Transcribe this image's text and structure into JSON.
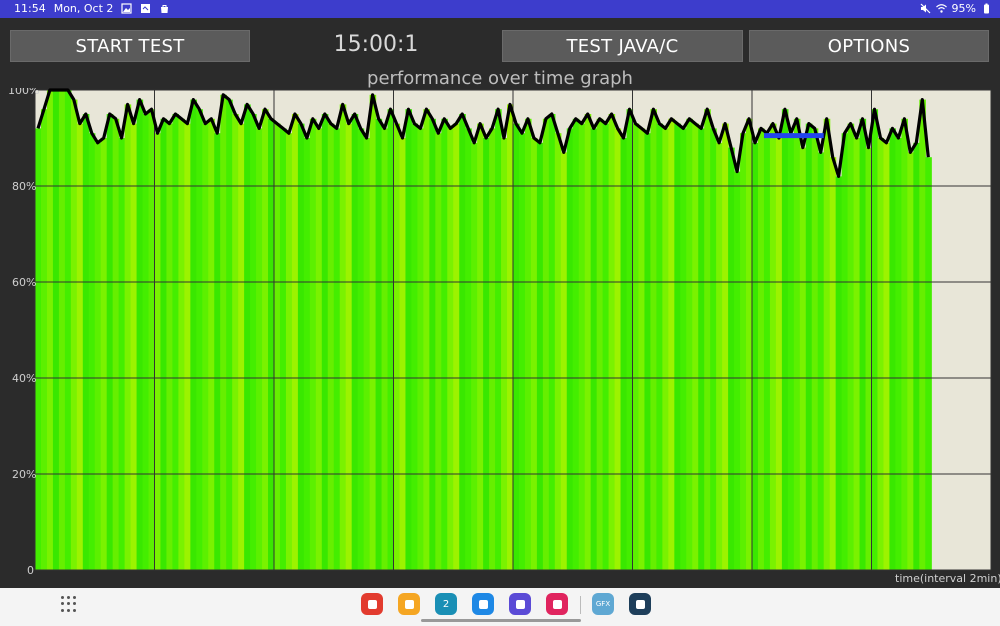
{
  "status_bar": {
    "time": "11:54",
    "date": "Mon, Oct 2",
    "battery": "95%",
    "bg_color": "#3d3dcc",
    "icons_left": [
      "gallery-icon",
      "image-icon",
      "bag-icon"
    ],
    "icons_right": [
      "mute-icon",
      "wifi-icon",
      "battery-icon"
    ]
  },
  "toolbar": {
    "start_label": "START TEST",
    "timer": "15:00:1",
    "java_label": "TEST JAVA/C",
    "options_label": "OPTIONS"
  },
  "graph": {
    "title": "performance over time graph",
    "y_ticks": [
      "100%",
      "80%",
      "60%",
      "40%",
      "20%",
      "0"
    ],
    "x_caption": "time(interval 2min)"
  },
  "chart_data": {
    "type": "line",
    "title": "performance over time graph",
    "xlabel": "time(interval 2min)",
    "ylabel": "",
    "ylim": [
      0,
      100
    ],
    "yticks": [
      0,
      20,
      40,
      60,
      80,
      100
    ],
    "xlim": [
      0,
      16
    ],
    "x_unit": "minutes",
    "x_gridlines_every": 2,
    "grid": true,
    "fill_color": "#44ee00",
    "line_color": "#000000",
    "plot_bg": "#e8e6d8",
    "series": [
      {
        "x": [
          0.0,
          0.1,
          0.2,
          0.3,
          0.4,
          0.5,
          0.6,
          0.7,
          0.8,
          0.9,
          1.0,
          1.1,
          1.2,
          1.3,
          1.4,
          1.5,
          1.6,
          1.7,
          1.8,
          1.9,
          2.0,
          2.1,
          2.2,
          2.3,
          2.4,
          2.5,
          2.6,
          2.7,
          2.8,
          2.9,
          3.0,
          3.1,
          3.2,
          3.3,
          3.4,
          3.5,
          3.6,
          3.7,
          3.8,
          3.9,
          4.0,
          4.1,
          4.2,
          4.3,
          4.4,
          4.5,
          4.6,
          4.7,
          4.8,
          4.9,
          5.0,
          5.1,
          5.2,
          5.3,
          5.4,
          5.5,
          5.6,
          5.7,
          5.8,
          5.9,
          6.0,
          6.1,
          6.2,
          6.3,
          6.4,
          6.5,
          6.6,
          6.7,
          6.8,
          6.9,
          7.0,
          7.1,
          7.2,
          7.3,
          7.4,
          7.5,
          7.6,
          7.7,
          7.8,
          7.9,
          8.0,
          8.1,
          8.2,
          8.3,
          8.4,
          8.5,
          8.6,
          8.7,
          8.8,
          8.9,
          9.0,
          9.1,
          9.2,
          9.3,
          9.4,
          9.5,
          9.6,
          9.7,
          9.8,
          9.9,
          10.0,
          10.1,
          10.2,
          10.3,
          10.4,
          10.5,
          10.6,
          10.7,
          10.8,
          10.9,
          11.0,
          11.1,
          11.2,
          11.3,
          11.4,
          11.5,
          11.6,
          11.7,
          11.8,
          11.9,
          12.0,
          12.1,
          12.2,
          12.3,
          12.4,
          12.5,
          12.6,
          12.7,
          12.8,
          12.9,
          13.0,
          13.1,
          13.2,
          13.3,
          13.4,
          13.5,
          13.6,
          13.7,
          13.8,
          13.9,
          14.0,
          14.1,
          14.2,
          14.3,
          14.4,
          14.5,
          14.6,
          14.7,
          14.8,
          14.9
        ],
        "values": [
          92,
          96,
          100,
          100,
          100,
          100,
          98,
          93,
          95,
          91,
          89,
          90,
          95,
          94,
          90,
          97,
          93,
          98,
          95,
          96,
          91,
          94,
          93,
          95,
          94,
          93,
          98,
          96,
          93,
          94,
          91,
          99,
          98,
          95,
          93,
          97,
          95,
          92,
          96,
          94,
          93,
          92,
          91,
          95,
          93,
          90,
          94,
          92,
          95,
          93,
          92,
          97,
          93,
          95,
          92,
          90,
          99,
          94,
          92,
          96,
          93,
          90,
          96,
          93,
          92,
          96,
          94,
          91,
          94,
          92,
          93,
          95,
          92,
          89,
          93,
          90,
          92,
          96,
          90,
          97,
          93,
          91,
          94,
          90,
          89,
          94,
          95,
          91,
          87,
          92,
          94,
          93,
          95,
          92,
          94,
          93,
          95,
          92,
          90,
          96,
          93,
          92,
          91,
          96,
          93,
          92,
          94,
          93,
          92,
          94,
          93,
          92,
          96,
          92,
          89,
          93,
          88,
          83,
          91,
          94,
          89,
          92,
          91,
          93,
          90,
          96,
          91,
          94,
          88,
          93,
          92,
          87,
          94,
          86,
          82,
          91,
          93,
          90,
          94,
          88,
          96,
          90,
          89,
          92,
          90,
          94,
          87,
          89,
          98,
          86
        ]
      }
    ],
    "marker": {
      "x_start": 12.2,
      "x_end": 13.2,
      "y": 90.5,
      "color": "#2244ee"
    }
  },
  "dock": {
    "apps": [
      {
        "name": "flipboard-icon",
        "color": "#e23b2e"
      },
      {
        "name": "files-icon",
        "color": "#f5a623"
      },
      {
        "name": "calendar-icon",
        "color": "#1a8fb5",
        "text": "2"
      },
      {
        "name": "messages-icon",
        "color": "#1e88e5"
      },
      {
        "name": "internet-icon",
        "color": "#5b4bd6"
      },
      {
        "name": "camera-icon",
        "color": "#e0245e"
      },
      {
        "name": "gfx-icon",
        "color": "#5fa8d3",
        "text": "GFX"
      },
      {
        "name": "snowflake-icon",
        "color": "#1e3e5a"
      }
    ]
  }
}
